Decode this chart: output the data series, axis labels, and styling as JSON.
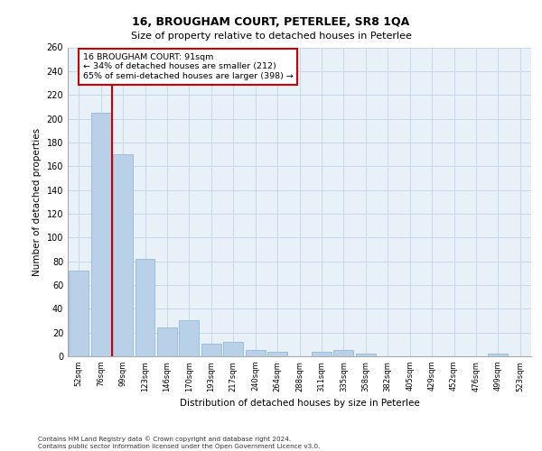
{
  "title1": "16, BROUGHAM COURT, PETERLEE, SR8 1QA",
  "title2": "Size of property relative to detached houses in Peterlee",
  "xlabel": "Distribution of detached houses by size in Peterlee",
  "ylabel": "Number of detached properties",
  "footnote": "Contains HM Land Registry data © Crown copyright and database right 2024.\nContains public sector information licensed under the Open Government Licence v3.0.",
  "categories": [
    "52sqm",
    "76sqm",
    "99sqm",
    "123sqm",
    "146sqm",
    "170sqm",
    "193sqm",
    "217sqm",
    "240sqm",
    "264sqm",
    "288sqm",
    "311sqm",
    "335sqm",
    "358sqm",
    "382sqm",
    "405sqm",
    "429sqm",
    "452sqm",
    "476sqm",
    "499sqm",
    "523sqm"
  ],
  "values": [
    72,
    205,
    170,
    82,
    24,
    30,
    11,
    12,
    5,
    4,
    0,
    4,
    5,
    2,
    0,
    0,
    0,
    0,
    0,
    2,
    0
  ],
  "bar_color": "#b8d0e8",
  "bar_edge_color": "#8ab0d0",
  "grid_color": "#c8d8ea",
  "background_color": "#e8f0f8",
  "vline_x": 1.5,
  "vline_color": "#cc0000",
  "annotation_text": "16 BROUGHAM COURT: 91sqm\n← 34% of detached houses are smaller (212)\n65% of semi-detached houses are larger (398) →",
  "annotation_box_color": "#ffffff",
  "annotation_box_edge": "#cc0000",
  "ylim": [
    0,
    260
  ],
  "yticks": [
    0,
    20,
    40,
    60,
    80,
    100,
    120,
    140,
    160,
    180,
    200,
    220,
    240,
    260
  ]
}
